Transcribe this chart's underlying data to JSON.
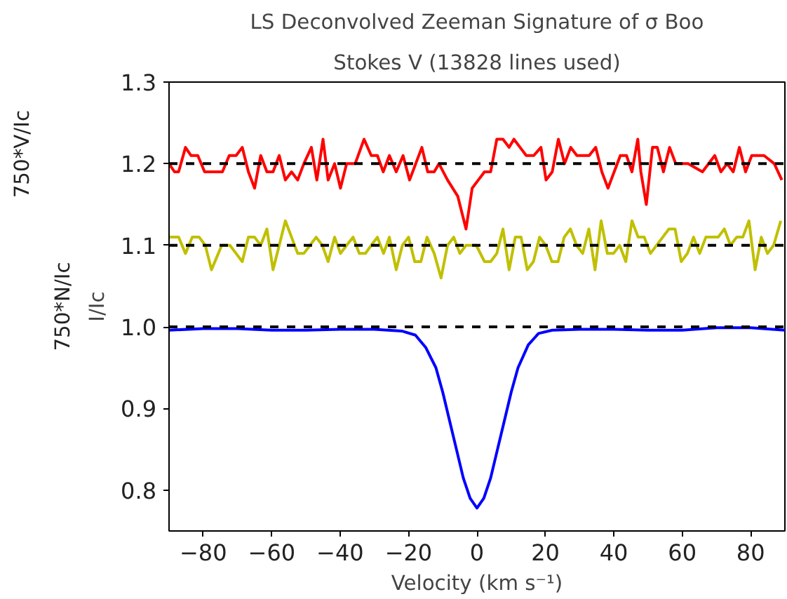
{
  "chart_data": {
    "type": "line",
    "title": "LS Deconvolved Zeeman Signature of σ Boo",
    "subtitle": "Stokes V (13828 lines used)",
    "xlabel": "Velocity (km s⁻¹)",
    "ylabel": "I/Ic",
    "annotations": [
      "750*N/Ic",
      "750*V/Ic"
    ],
    "xlim": [
      -90,
      90
    ],
    "xticks": [
      -80,
      -60,
      -40,
      -20,
      0,
      20,
      40,
      60,
      80
    ],
    "ylim": [
      0.75,
      1.3
    ],
    "yticks": [
      {
        "value": 0.8,
        "label": "0.8"
      },
      {
        "value": 0.9,
        "label": "0.9"
      },
      {
        "value": 1.0,
        "label": "1.0"
      },
      {
        "value": 1.1,
        "label": "1.1"
      },
      {
        "value": 1.2,
        "label": "1.2"
      },
      {
        "value": 1.3,
        "label": "1.3"
      }
    ],
    "grid": false,
    "line_style": "solid",
    "marker": "none",
    "ref_lines": [
      {
        "axis": "y",
        "value": 1.0,
        "color": "#000000",
        "line_style": "dashed"
      },
      {
        "axis": "y",
        "value": 1.1,
        "color": "#000000",
        "line_style": "dashed"
      },
      {
        "axis": "y",
        "value": 1.2,
        "color": "#000000",
        "line_style": "dashed"
      }
    ],
    "series": [
      {
        "color": "#ff0000",
        "x": [
          -90,
          -88.4,
          -87.2,
          -85.2,
          -83.6,
          -81.6,
          -79.6,
          -77,
          -74.4,
          -72.4,
          -70.4,
          -68.6,
          -66.8,
          -65,
          -63.2,
          -61.4,
          -59.6,
          -57.8,
          -56,
          -54.2,
          -52.4,
          -50.6,
          -48.4,
          -46.8,
          -45,
          -43.5,
          -41.6,
          -39.9,
          -38.1,
          -35.6,
          -33,
          -30.9,
          -29.1,
          -27.4,
          -25.6,
          -23.6,
          -21.6,
          -19.7,
          -16.1,
          -14.4,
          -12.5,
          -11.1,
          -8.6,
          -5.6,
          -3.2,
          -1.4,
          0.4,
          2.2,
          4,
          5.8,
          7.6,
          9.4,
          10.8,
          12.6,
          14.4,
          16.6,
          18.7,
          20.2,
          22,
          23.8,
          25.6,
          27.4,
          29.2,
          31,
          32.8,
          34.7,
          36.5,
          38.3,
          40.1,
          41.9,
          43.7,
          45.3,
          47,
          47.9,
          49.5,
          51.3,
          52.7,
          54.5,
          56.3,
          58.1,
          61.7,
          65.9,
          69.5,
          71.3,
          73.1,
          74.9,
          76.7,
          78.5,
          80.3,
          83.9,
          86.9,
          89.1
        ],
        "values": [
          1.2,
          1.19,
          1.19,
          1.22,
          1.21,
          1.21,
          1.19,
          1.19,
          1.19,
          1.21,
          1.21,
          1.22,
          1.19,
          1.17,
          1.21,
          1.19,
          1.19,
          1.21,
          1.18,
          1.19,
          1.18,
          1.2,
          1.22,
          1.18,
          1.23,
          1.18,
          1.2,
          1.17,
          1.2,
          1.2,
          1.23,
          1.21,
          1.21,
          1.19,
          1.21,
          1.19,
          1.21,
          1.18,
          1.22,
          1.19,
          1.19,
          1.2,
          1.18,
          1.16,
          1.12,
          1.17,
          1.18,
          1.19,
          1.19,
          1.23,
          1.23,
          1.22,
          1.23,
          1.22,
          1.21,
          1.21,
          1.22,
          1.18,
          1.19,
          1.23,
          1.2,
          1.22,
          1.21,
          1.21,
          1.21,
          1.22,
          1.19,
          1.17,
          1.19,
          1.21,
          1.21,
          1.19,
          1.23,
          1.19,
          1.15,
          1.22,
          1.22,
          1.19,
          1.22,
          1.2,
          1.2,
          1.19,
          1.21,
          1.19,
          1.2,
          1.19,
          1.22,
          1.19,
          1.21,
          1.21,
          1.2,
          1.18
        ]
      },
      {
        "color": "#c0c000",
        "x": [
          -90,
          -87.2,
          -85.2,
          -83.2,
          -81.2,
          -79.4,
          -77.6,
          -74.6,
          -72.2,
          -70.4,
          -68.6,
          -66.8,
          -65,
          -63.2,
          -61.4,
          -59.6,
          -57.8,
          -56,
          -54.2,
          -52.4,
          -50.6,
          -48.8,
          -47,
          -45.2,
          -43.5,
          -41.6,
          -39.9,
          -38.1,
          -36.2,
          -34.4,
          -32.6,
          -30.9,
          -29.1,
          -27.3,
          -25.6,
          -23.6,
          -21.8,
          -20,
          -18.2,
          -16.4,
          -14.6,
          -12.5,
          -10.5,
          -8.6,
          -6.8,
          -5,
          -3.2,
          -0.2,
          2.2,
          4,
          5.8,
          7.6,
          9.4,
          11.2,
          12.9,
          14.7,
          16.5,
          18.3,
          20.1,
          21.9,
          23.7,
          25.5,
          27.3,
          29.1,
          30.9,
          32.7,
          34.5,
          36.3,
          38.1,
          39.9,
          41.7,
          43.5,
          45.3,
          47.1,
          48.9,
          50.7,
          52.5,
          54.3,
          56.1,
          57.9,
          59.7,
          61.5,
          63.3,
          65.1,
          66.9,
          68.7,
          70.5,
          72.3,
          74.1,
          75.9,
          77.7,
          79.5,
          81.3,
          83.1,
          84.9,
          86.7,
          88.8
        ],
        "values": [
          1.11,
          1.11,
          1.09,
          1.11,
          1.11,
          1.1,
          1.07,
          1.1,
          1.1,
          1.09,
          1.08,
          1.11,
          1.11,
          1.1,
          1.12,
          1.07,
          1.1,
          1.13,
          1.11,
          1.09,
          1.09,
          1.1,
          1.11,
          1.1,
          1.08,
          1.11,
          1.09,
          1.1,
          1.11,
          1.09,
          1.09,
          1.1,
          1.11,
          1.09,
          1.11,
          1.07,
          1.1,
          1.11,
          1.08,
          1.08,
          1.11,
          1.09,
          1.06,
          1.1,
          1.11,
          1.09,
          1.1,
          1.1,
          1.08,
          1.08,
          1.09,
          1.12,
          1.07,
          1.11,
          1.11,
          1.07,
          1.08,
          1.11,
          1.1,
          1.08,
          1.08,
          1.11,
          1.12,
          1.1,
          1.09,
          1.12,
          1.07,
          1.13,
          1.09,
          1.09,
          1.1,
          1.08,
          1.13,
          1.11,
          1.11,
          1.09,
          1.1,
          1.11,
          1.12,
          1.12,
          1.08,
          1.09,
          1.11,
          1.09,
          1.11,
          1.11,
          1.11,
          1.12,
          1.1,
          1.11,
          1.11,
          1.13,
          1.07,
          1.11,
          1.09,
          1.1,
          1.13
        ]
      },
      {
        "color": "#0000ff",
        "x": [
          -90,
          -80,
          -70,
          -60,
          -50,
          -40,
          -30,
          -22,
          -18,
          -15,
          -12,
          -10,
          -8,
          -6,
          -4,
          -2,
          0,
          2,
          4,
          6,
          8,
          10,
          12,
          15,
          18,
          22,
          30,
          40,
          50,
          60,
          70,
          80,
          90
        ],
        "values": [
          0.996,
          0.998,
          0.998,
          0.996,
          0.996,
          0.997,
          0.997,
          0.995,
          0.99,
          0.975,
          0.95,
          0.92,
          0.885,
          0.85,
          0.815,
          0.79,
          0.778,
          0.79,
          0.815,
          0.85,
          0.885,
          0.92,
          0.95,
          0.978,
          0.992,
          0.996,
          0.997,
          0.997,
          0.996,
          0.996,
          0.999,
          0.999,
          0.996
        ]
      }
    ]
  }
}
